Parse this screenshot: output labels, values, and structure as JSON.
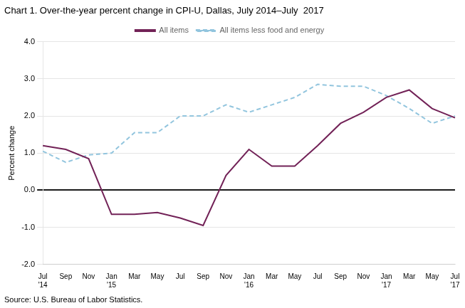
{
  "chart_data": {
    "type": "line",
    "title": "Chart 1. Over-the-year percent change in CPI-U, Dallas, July 2014–July  2017",
    "ylabel": "Percent change",
    "annotations": [
      "Source: U.S. Bureau of Labor Statistics."
    ],
    "categories": [
      "Jul\n'14",
      "Sep",
      "Nov",
      "Jan\n'15",
      "Mar",
      "May",
      "Jul",
      "Sep",
      "Nov",
      "Jan\n'16",
      "Mar",
      "May",
      "Jul",
      "Sep",
      "Nov",
      "Jan\n'17",
      "Mar",
      "May",
      "Jul\n'17"
    ],
    "series": [
      {
        "name": "All items",
        "color": "#722257",
        "line_style": "solid",
        "values": [
          1.2,
          1.1,
          0.85,
          -0.65,
          -0.65,
          -0.6,
          -0.75,
          -0.95,
          0.4,
          1.1,
          0.65,
          0.65,
          1.2,
          1.8,
          2.1,
          2.5,
          2.7,
          2.2,
          1.95
        ]
      },
      {
        "name": "All items less food and energy",
        "color": "#92c5de",
        "line_style": "dashed",
        "values": [
          1.05,
          0.75,
          0.95,
          1.0,
          1.55,
          1.55,
          2.0,
          2.0,
          2.3,
          2.1,
          2.3,
          2.5,
          2.85,
          2.8,
          2.8,
          2.55,
          2.2,
          1.8,
          2.0
        ]
      }
    ],
    "ylim": [
      -2.0,
      4.0
    ],
    "yticks": [
      {
        "value": -2.0,
        "label": "-2.0"
      },
      {
        "value": -1.0,
        "label": "-1.0"
      },
      {
        "value": 0.0,
        "label": "0.0"
      },
      {
        "value": 1.0,
        "label": "1.0"
      },
      {
        "value": 2.0,
        "label": "2.0"
      },
      {
        "value": 3.0,
        "label": "3.0"
      },
      {
        "value": 4.0,
        "label": "4.0"
      }
    ],
    "grid": "y",
    "legend": "top"
  }
}
